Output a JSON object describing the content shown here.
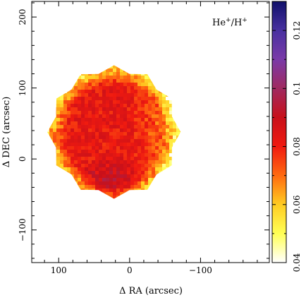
{
  "chart_data": {
    "type": "heatmap",
    "title": "",
    "annotation": {
      "base": "He",
      "sup1": "+",
      "mid": "/H",
      "sup2": "+"
    },
    "xlabel": "Δ RA (arcsec)",
    "ylabel": "Δ DEC (arcsec)",
    "xlim": [
      138,
      -197
    ],
    "ylim": [
      -146,
      222
    ],
    "x_ticks": [
      100,
      0,
      -100
    ],
    "x_tick_labels": [
      "100",
      "0",
      "−100"
    ],
    "y_ticks": [
      -100,
      0,
      100,
      200
    ],
    "y_tick_labels": [
      "−100",
      "0",
      "100",
      "200"
    ],
    "colorbar": {
      "range": [
        0.04,
        0.13
      ],
      "ticks": [
        0.04,
        0.06,
        0.08,
        0.1,
        0.12
      ],
      "tick_labels": [
        "0.04",
        "0.06",
        "0.08",
        "0.1",
        "0.12"
      ],
      "colors": [
        "#ffffff",
        "#ffff55",
        "#ffcc22",
        "#ff6a10",
        "#f01a10",
        "#c8101a",
        "#a02a60",
        "#7a3aa8",
        "#4830a0",
        "#10106a"
      ]
    },
    "field": {
      "shape": "dodecagon-mosaic",
      "center": [
        22,
        38
      ],
      "radius": 188,
      "background_ratio": 0.082,
      "blue_region_center": [
        30,
        -40
      ],
      "blue_region_ratio": 0.095,
      "edge_ratio": 0.058
    }
  }
}
